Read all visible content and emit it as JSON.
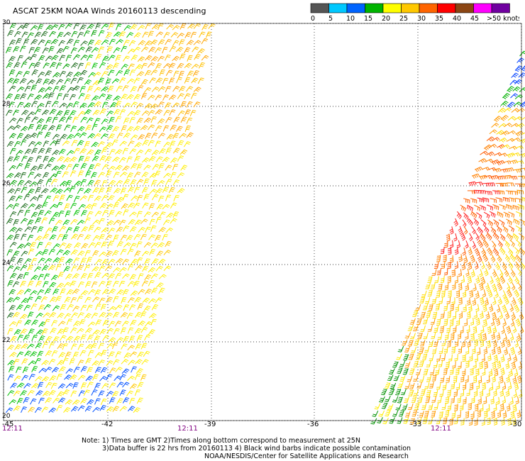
{
  "title": "ASCAT 25KM NOAA Winds 20160113 descending",
  "scale": {
    "colors": [
      "#555555",
      "#00c8ff",
      "#0064ff",
      "#00b400",
      "#ffff00",
      "#ffc800",
      "#ff6400",
      "#ff0000",
      "#8b4513",
      "#ff00ff",
      "#7000a0"
    ],
    "labels": [
      "0",
      "5",
      "10",
      "15",
      "20",
      "25",
      "30",
      "35",
      "40",
      "45",
      ">50 knots"
    ]
  },
  "lat_labels": [
    "30",
    "28",
    "26",
    "24",
    "22",
    "20"
  ],
  "lon_labels": [
    "-45",
    "-42",
    "-39",
    "-36",
    "-33",
    "-30"
  ],
  "time_labels": [
    "12:11",
    "12:11",
    "12:11"
  ],
  "notes": [
    "Note: 1) Times are GMT 2)Times along bottom correspond to measurement at 25N",
    "3)Data buffer is 22 hrs from 20160113 4) Black wind barbs indicate possible contamination",
    "NOAA/NESDIS/Center for Satellite Applications and Research"
  ],
  "icons": {
    "wind_barb": "wind-barb-icon"
  }
}
